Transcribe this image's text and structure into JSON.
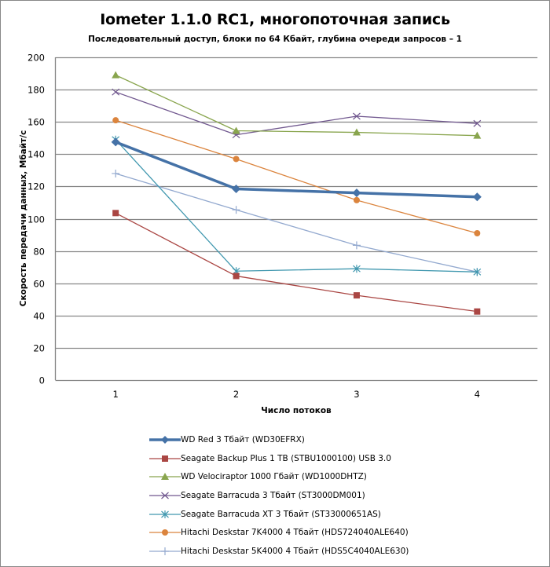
{
  "chart_data": {
    "type": "line",
    "title": "Iometer 1.1.0 RC1, многопоточная запись",
    "subtitle": "Последовательный  доступ, блоки  по 64 Кбайт,  глубина очереди запросов  – 1",
    "xlabel": "Число  потоков",
    "ylabel": "Скорость  передачи данных, Мбайт/с",
    "categories": [
      "1",
      "2",
      "3",
      "4"
    ],
    "ylim": [
      0,
      200
    ],
    "yticks": [
      "0",
      "20",
      "40",
      "60",
      "80",
      "100",
      "120",
      "140",
      "160",
      "180",
      "200"
    ],
    "grid": true,
    "legend_position": "bottom",
    "series": [
      {
        "name": "WD Red 3 Тбайт (WD30EFRX)",
        "values": [
          147.5,
          118.5,
          116,
          113.5
        ],
        "color": "#4572a7",
        "marker": "diamond",
        "bold": true
      },
      {
        "name": "Seagate Backup Plus 1 TB (STBU1000100) USB 3.0",
        "values": [
          103.5,
          64.5,
          52.5,
          42.5
        ],
        "color": "#aa4643",
        "marker": "square",
        "bold": false
      },
      {
        "name": "WD Velociraptor 1000 Гбайт (WD1000DHTZ)",
        "values": [
          189,
          154.5,
          153.5,
          151.5
        ],
        "color": "#89a54e",
        "marker": "triangle",
        "bold": false
      },
      {
        "name": "Seagate Barracuda 3 Тбайт (ST3000DM001)",
        "values": [
          178.5,
          152,
          163.5,
          159
        ],
        "color": "#71588f",
        "marker": "x",
        "bold": false
      },
      {
        "name": "Seagate Barracuda XT 3 Тбайт (ST33000651AS)",
        "values": [
          149,
          67.5,
          69,
          67
        ],
        "color": "#4198af",
        "marker": "star",
        "bold": false
      },
      {
        "name": "Hitachi Deskstar 7K4000 4 Тбайт (HDS724040ALE640)",
        "values": [
          161,
          137,
          111.5,
          91
        ],
        "color": "#db843d",
        "marker": "circle",
        "bold": false
      },
      {
        "name": "Hitachi Deskstar 5K4000 4 Тбайт (HDS5C4040ALE630)",
        "values": [
          128,
          105.5,
          83.5,
          67
        ],
        "color": "#93a9cf",
        "marker": "plus",
        "bold": false
      }
    ]
  }
}
